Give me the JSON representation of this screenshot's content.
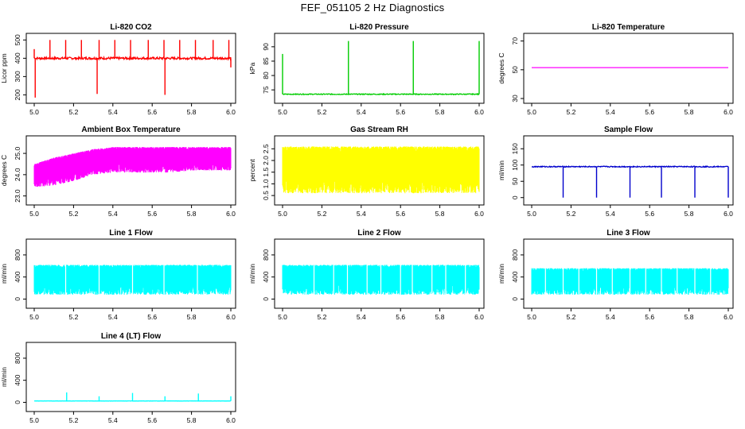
{
  "title": "FEF_051105  2 Hz Diagnostics",
  "chart_data": [
    {
      "type": "line",
      "title": "Li-820 CO2",
      "ylabel": "Licor ppm",
      "color": "#ff0000",
      "xlim": [
        5.0,
        6.0
      ],
      "ylim": [
        180,
        510
      ],
      "xticks": [
        "5.0",
        "5.2",
        "5.4",
        "5.6",
        "5.8",
        "6.0"
      ],
      "yticks": [
        "200",
        "300",
        "400",
        "500"
      ],
      "series": {
        "name": "CO2",
        "baseline": 400,
        "noise": 6,
        "spikes": [
          {
            "x": 5.0,
            "y": 450
          },
          {
            "x": 5.005,
            "y": 185
          },
          {
            "x": 5.08,
            "y": 500
          },
          {
            "x": 5.16,
            "y": 500
          },
          {
            "x": 5.24,
            "y": 500
          },
          {
            "x": 5.32,
            "y": 205
          },
          {
            "x": 5.33,
            "y": 500
          },
          {
            "x": 5.41,
            "y": 500
          },
          {
            "x": 5.49,
            "y": 500
          },
          {
            "x": 5.58,
            "y": 500
          },
          {
            "x": 5.66,
            "y": 500
          },
          {
            "x": 5.665,
            "y": 200
          },
          {
            "x": 5.74,
            "y": 500
          },
          {
            "x": 5.82,
            "y": 500
          },
          {
            "x": 5.91,
            "y": 500
          },
          {
            "x": 5.99,
            "y": 500
          },
          {
            "x": 6.0,
            "y": 350
          }
        ]
      }
    },
    {
      "type": "line",
      "title": "Li-820 Pressure",
      "ylabel": "kPa",
      "color": "#00cc00",
      "xlim": [
        5.0,
        6.0
      ],
      "ylim": [
        72,
        93
      ],
      "xticks": [
        "5.0",
        "5.2",
        "5.4",
        "5.6",
        "5.8",
        "6.0"
      ],
      "yticks": [
        "75",
        "80",
        "85",
        "90"
      ],
      "series": {
        "name": "Pressure",
        "baseline": 73.5,
        "noise": 0.15,
        "spikes": [
          {
            "x": 5.0,
            "y": 87.5
          },
          {
            "x": 5.335,
            "y": 92
          },
          {
            "x": 5.665,
            "y": 92
          },
          {
            "x": 6.0,
            "y": 92
          }
        ]
      }
    },
    {
      "type": "line",
      "title": "Li-820 Temperature",
      "ylabel": "degrees C",
      "color": "#ff00ff",
      "xlim": [
        5.0,
        6.0
      ],
      "ylim": [
        30,
        72
      ],
      "xticks": [
        "5.0",
        "5.2",
        "5.4",
        "5.6",
        "5.8",
        "6.0"
      ],
      "yticks": [
        "30",
        "50",
        "70"
      ],
      "series": {
        "name": "Temperature",
        "baseline": 51.5,
        "noise": 0,
        "spikes": []
      }
    },
    {
      "type": "area",
      "title": "Ambient Box Temperature",
      "ylabel": "degrees C",
      "color": "#ff00ff",
      "xlim": [
        5.0,
        6.0
      ],
      "ylim": [
        22.8,
        25.6
      ],
      "xticks": [
        "5.0",
        "5.2",
        "5.4",
        "5.6",
        "5.8",
        "6.0"
      ],
      "yticks": [
        "23.0",
        "24.0",
        "25.0"
      ],
      "band": {
        "x": [
          5.0,
          5.1,
          5.2,
          5.3,
          5.4,
          5.5,
          5.6,
          5.7,
          5.8,
          5.9,
          6.0
        ],
        "low": [
          23.4,
          23.5,
          23.7,
          24.0,
          24.1,
          24.1,
          24.1,
          24.1,
          24.2,
          24.2,
          24.2
        ],
        "high": [
          24.5,
          24.8,
          25.0,
          25.2,
          25.3,
          25.3,
          25.3,
          25.3,
          25.3,
          25.3,
          25.3
        ]
      }
    },
    {
      "type": "area",
      "title": "Gas Stream RH",
      "ylabel": "percent",
      "color": "#ffff00",
      "xlim": [
        5.0,
        6.0
      ],
      "ylim": [
        0.3,
        2.85
      ],
      "xticks": [
        "5.0",
        "5.2",
        "5.4",
        "5.6",
        "5.8",
        "6.0"
      ],
      "yticks": [
        "0.5",
        "1.0",
        "1.5",
        "2.0",
        "2.5"
      ],
      "band": {
        "x": [
          5.0,
          6.0
        ],
        "low": [
          0.6,
          0.6
        ],
        "high": [
          2.6,
          2.6
        ]
      }
    },
    {
      "type": "line",
      "title": "Sample Flow",
      "ylabel": "ml/min",
      "color": "#0000cc",
      "xlim": [
        5.0,
        6.0
      ],
      "ylim": [
        -8,
        175
      ],
      "xticks": [
        "5.0",
        "5.2",
        "5.4",
        "5.6",
        "5.8",
        "6.0"
      ],
      "yticks": [
        "0",
        "50",
        "100",
        "150"
      ],
      "series": {
        "name": "Sample Flow",
        "baseline": 95,
        "noise": 1.5,
        "spikes": [
          {
            "x": 5.16,
            "y": 0
          },
          {
            "x": 5.33,
            "y": 0
          },
          {
            "x": 5.5,
            "y": 0
          },
          {
            "x": 5.66,
            "y": 0
          },
          {
            "x": 5.83,
            "y": 0
          },
          {
            "x": 6.0,
            "y": 0
          }
        ]
      }
    },
    {
      "type": "area",
      "title": "Line 1 Flow",
      "ylabel": "ml/min",
      "color": "#00ffff",
      "xlim": [
        5.0,
        6.0
      ],
      "ylim": [
        -80,
        1000
      ],
      "xticks": [
        "5.0",
        "5.2",
        "5.4",
        "5.6",
        "5.8",
        "6.0"
      ],
      "yticks": [
        "0",
        "400",
        "800"
      ],
      "band": {
        "x": [
          5.0,
          6.0
        ],
        "low": [
          80,
          80
        ],
        "high": [
          620,
          620
        ]
      },
      "gaps": [
        5.16,
        5.33,
        5.5,
        5.66,
        5.83
      ]
    },
    {
      "type": "area",
      "title": "Line 2 Flow",
      "ylabel": "ml/min",
      "color": "#00ffff",
      "xlim": [
        5.0,
        6.0
      ],
      "ylim": [
        -80,
        1000
      ],
      "xticks": [
        "5.0",
        "5.2",
        "5.4",
        "5.6",
        "5.8",
        "6.0"
      ],
      "yticks": [
        "0",
        "400",
        "800"
      ],
      "band": {
        "x": [
          5.0,
          6.0
        ],
        "low": [
          80,
          80
        ],
        "high": [
          620,
          620
        ]
      },
      "gaps": [
        5.16,
        5.26,
        5.33,
        5.43,
        5.5,
        5.6,
        5.66,
        5.76,
        5.83,
        5.93
      ]
    },
    {
      "type": "area",
      "title": "Line 3 Flow",
      "ylabel": "ml/min",
      "color": "#00ffff",
      "xlim": [
        5.0,
        6.0
      ],
      "ylim": [
        -80,
        1000
      ],
      "xticks": [
        "5.0",
        "5.2",
        "5.4",
        "5.6",
        "5.8",
        "6.0"
      ],
      "yticks": [
        "0",
        "400",
        "800"
      ],
      "band": {
        "x": [
          5.0,
          6.0
        ],
        "low": [
          80,
          80
        ],
        "high": [
          560,
          560
        ]
      },
      "gaps": [
        5.07,
        5.16,
        5.24,
        5.33,
        5.41,
        5.5,
        5.58,
        5.66,
        5.74,
        5.83,
        5.91
      ]
    },
    {
      "type": "line",
      "title": "Line 4 (LT) Flow",
      "ylabel": "ml/min",
      "color": "#00ffff",
      "xlim": [
        5.0,
        6.0
      ],
      "ylim": [
        -80,
        1000
      ],
      "xticks": [
        "5.0",
        "5.2",
        "5.4",
        "5.6",
        "5.8",
        "6.0"
      ],
      "yticks": [
        "0",
        "400",
        "800"
      ],
      "series": {
        "name": "Line 4",
        "baseline": 25,
        "noise": 2,
        "spikes": [
          {
            "x": 5.165,
            "y": 180
          },
          {
            "x": 5.33,
            "y": 110
          },
          {
            "x": 5.5,
            "y": 170
          },
          {
            "x": 5.665,
            "y": 110
          },
          {
            "x": 5.835,
            "y": 160
          },
          {
            "x": 6.0,
            "y": 110
          }
        ]
      }
    }
  ]
}
